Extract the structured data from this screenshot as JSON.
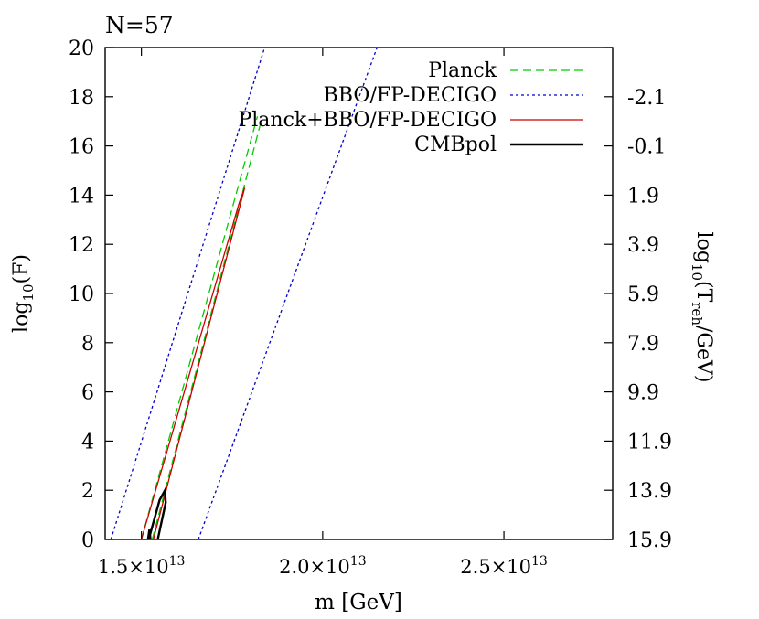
{
  "chart_data": {
    "type": "line",
    "title": "N=57",
    "xlabel": "m [GeV]",
    "ylabel_main": "log",
    "ylabel_sub": "10",
    "ylabel_tail": "(F)",
    "y2label_main": "log",
    "y2label_sub": "10",
    "y2label_mid": "(T",
    "y2label_sub2": "reh",
    "y2label_tail": "/GeV)",
    "xlim": [
      14000000000000.0,
      28000000000000.0
    ],
    "ylim": [
      0,
      20
    ],
    "x_ticks": [
      {
        "value": 15000000000000.0,
        "mant": "1.5",
        "exp": "13"
      },
      {
        "value": 20000000000000.0,
        "mant": "2.0",
        "exp": "13"
      },
      {
        "value": 25000000000000.0,
        "mant": "2.5",
        "exp": "13"
      }
    ],
    "x_times": "×10",
    "y_ticks": [
      "0",
      "2",
      "4",
      "6",
      "8",
      "10",
      "12",
      "14",
      "16",
      "18",
      "20"
    ],
    "y2_ticks": [
      {
        "at": 0,
        "label": "15.9"
      },
      {
        "at": 2,
        "label": "13.9"
      },
      {
        "at": 4,
        "label": "11.9"
      },
      {
        "at": 6,
        "label": "9.9"
      },
      {
        "at": 8,
        "label": "7.9"
      },
      {
        "at": 10,
        "label": "5.9"
      },
      {
        "at": 12,
        "label": "3.9"
      },
      {
        "at": 14,
        "label": "1.9"
      },
      {
        "at": 16,
        "label": "-0.1"
      },
      {
        "at": 18,
        "label": "-2.1"
      }
    ],
    "grid": false,
    "legend_position": "top-right",
    "series": [
      {
        "name": "Planck",
        "color": "#00cc00",
        "dash": "dashed",
        "segments": [
          [
            [
              15000000000000.0,
              0
            ],
            [
              18200000000000.0,
              17.2
            ]
          ],
          [
            [
              15300000000000.0,
              0
            ],
            [
              18300000000000.0,
              17.0
            ]
          ]
        ]
      },
      {
        "name": "BBO/FP-DECIGO",
        "color": "#0000cc",
        "dash": "dotted",
        "segments": [
          [
            [
              14160000000000.0,
              0
            ],
            [
              18400000000000.0,
              20
            ]
          ],
          [
            [
              16570000000000.0,
              0
            ],
            [
              21500000000000.0,
              20
            ]
          ]
        ]
      },
      {
        "name": "Planck+BBO/FP-DECIGO",
        "color": "#cc0000",
        "dash": "solid",
        "segments": [
          [
            [
              15000000000000.0,
              0
            ],
            [
              17700000000000.0,
              13.7
            ],
            [
              17850000000000.0,
              14.3
            ],
            [
              15330000000000.0,
              0
            ]
          ]
        ]
      },
      {
        "name": "CMBpol",
        "color": "#000000",
        "dash": "solid",
        "segments": [
          [
            [
              15200000000000.0,
              0
            ],
            [
              15500000000000.0,
              1.6
            ],
            [
              15650000000000.0,
              2.0
            ],
            [
              15670000000000.0,
              1.5
            ],
            [
              15450000000000.0,
              0
            ]
          ],
          [
            [
              15180000000000.0,
              0
            ],
            [
              15220000000000.0,
              0.4
            ],
            [
              15250000000000.0,
              0
            ]
          ]
        ]
      }
    ]
  }
}
